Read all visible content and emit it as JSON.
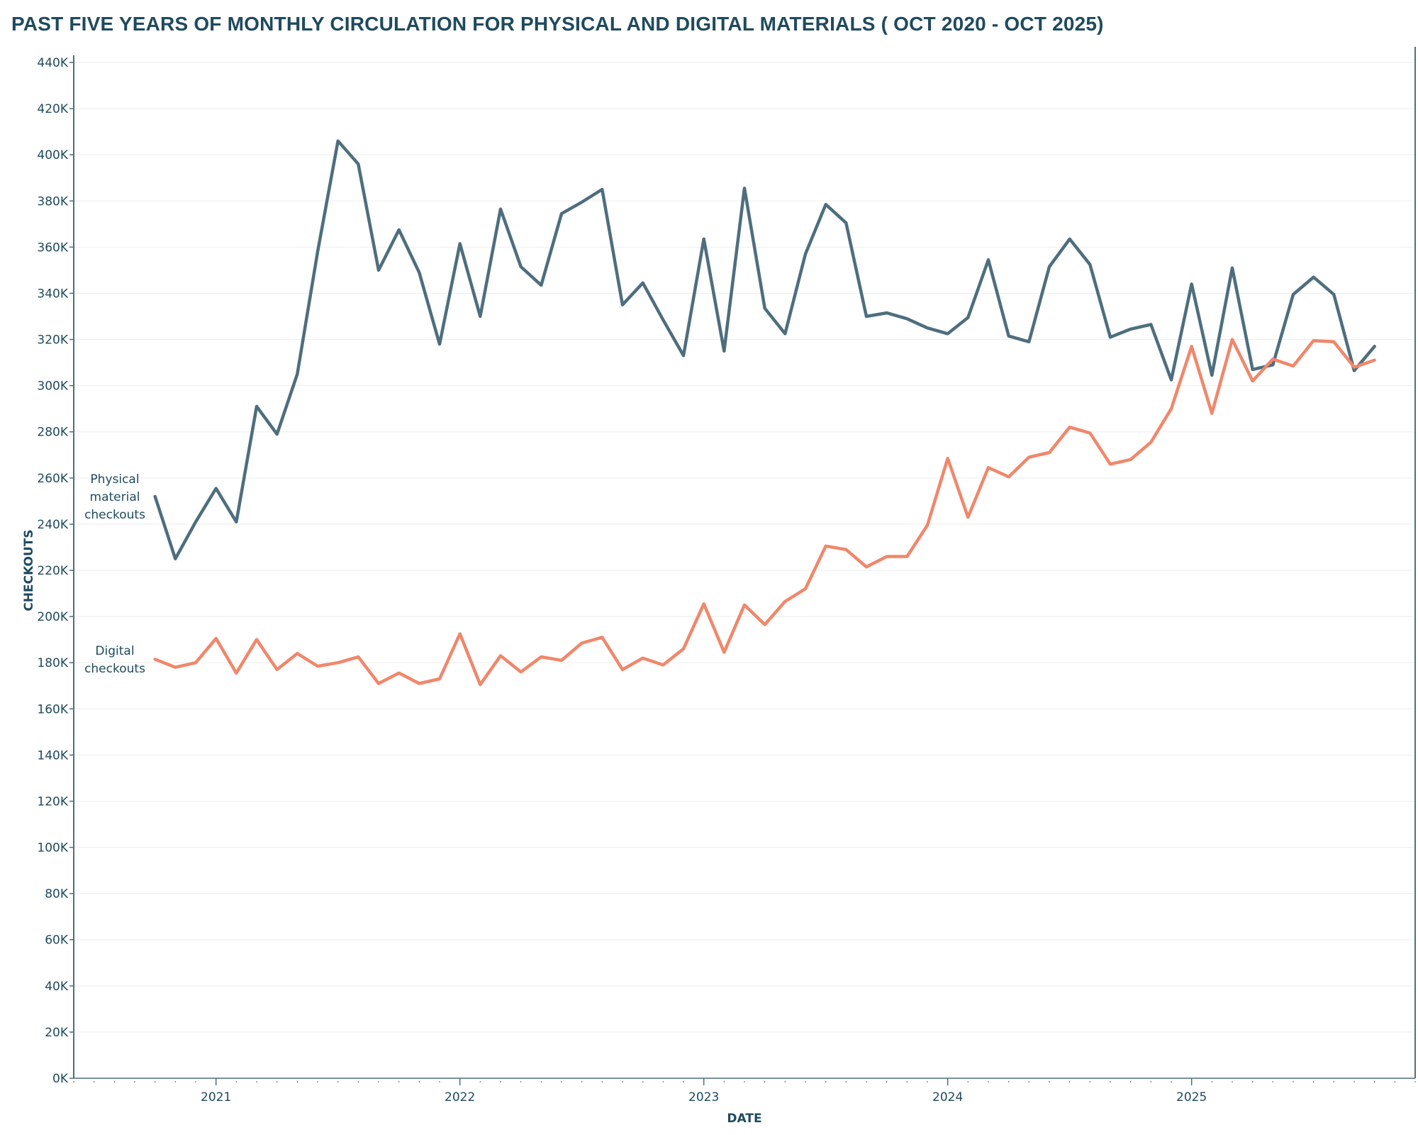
{
  "chart_data": {
    "type": "line",
    "title": "PAST FIVE YEARS OF MONTHLY CIRCULATION FOR PHYSICAL AND DIGITAL MATERIALS ( OCT 2020 - OCT 2025)",
    "xlabel": "DATE",
    "ylabel": "CHECKOUTS",
    "ylim": [
      0,
      440000
    ],
    "y_ticks": [
      "0K",
      "20K",
      "40K",
      "60K",
      "80K",
      "100K",
      "120K",
      "140K",
      "160K",
      "180K",
      "200K",
      "220K",
      "240K",
      "260K",
      "280K",
      "300K",
      "320K",
      "340K",
      "360K",
      "380K",
      "400K",
      "420K",
      "440K"
    ],
    "x_ticks": [
      "2021",
      "2022",
      "2023",
      "2024",
      "2025"
    ],
    "x_start": "2020-10",
    "x_range": [
      "2020-06",
      "2025-12"
    ],
    "grid": true,
    "legend": "inline labels at left of each line",
    "colors": {
      "physical": "#4e6e7e",
      "digital": "#f0876b",
      "text": "#1f4a5e",
      "axis": "#4e6e7e",
      "grid": "#eeeeee"
    },
    "series": [
      {
        "name": "Physical material checkouts",
        "color": "#4e6e7e",
        "values": [
          252000,
          225000,
          241000,
          255500,
          241000,
          291000,
          279000,
          305000,
          358000,
          406000,
          396000,
          350000,
          367500,
          349000,
          318000,
          361500,
          330000,
          376500,
          351500,
          343500,
          374500,
          379500,
          385000,
          335000,
          344500,
          328500,
          313000,
          363500,
          315000,
          385500,
          333500,
          322500,
          357000,
          378500,
          370500,
          330000,
          331500,
          329000,
          325000,
          322500,
          329500,
          354500,
          321500,
          319000,
          351500,
          363500,
          352500,
          321000,
          324500,
          326500,
          302500,
          344000,
          304500,
          351000,
          307000,
          309000,
          339500,
          347000,
          339500,
          306500,
          317000
        ]
      },
      {
        "name": "Digital checkouts",
        "color": "#f0876b",
        "values": [
          181500,
          178000,
          180000,
          190500,
          175500,
          190000,
          177000,
          184000,
          178500,
          180000,
          182500,
          171000,
          175500,
          171000,
          173000,
          192500,
          170500,
          183000,
          176000,
          182500,
          181000,
          188500,
          191000,
          177000,
          182000,
          179000,
          186000,
          205500,
          184500,
          205000,
          196500,
          206500,
          212000,
          230500,
          229000,
          221500,
          226000,
          226000,
          239500,
          268500,
          243000,
          264500,
          260500,
          269000,
          271000,
          282000,
          279500,
          266000,
          268000,
          275500,
          290000,
          317000,
          288000,
          320000,
          302000,
          311500,
          308500,
          319500,
          319000,
          308000,
          311000
        ]
      }
    ]
  }
}
